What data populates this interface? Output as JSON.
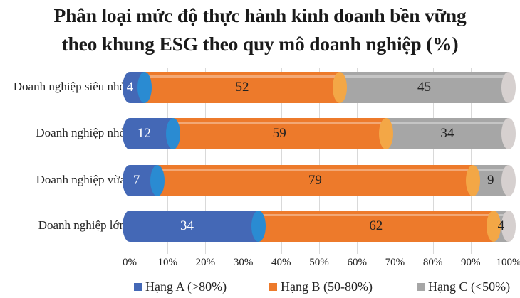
{
  "chart_data": {
    "type": "bar",
    "orientation": "horizontal",
    "stacked": "percent",
    "title": "Phân loại mức độ thực hành kinh doanh bền vững theo khung ESG theo quy mô doanh nghiệp (%)",
    "title_lines": [
      "Phân loại mức độ thực hành kinh doanh bền vững",
      "theo khung ESG theo quy mô doanh nghiệp (%)"
    ],
    "categories": [
      "Doanh nghiệp siêu nhỏ",
      "Doanh nghiệp nhỏ",
      "Doanh nghiệp vừa",
      "Doanh nghiệp lớn"
    ],
    "series": [
      {
        "name": "Hạng A (>80%)",
        "color": "#4468B6",
        "cap_color": "#2A8BD2",
        "values": [
          4,
          12,
          7,
          34
        ]
      },
      {
        "name": "Hạng B (50-80%)",
        "color": "#ED7A2B",
        "cap_color": "#F3A746",
        "values": [
          52,
          59,
          79,
          62
        ]
      },
      {
        "name": "Hạng C (<50%)",
        "color": "#A6A6A6",
        "cap_color": "#D6D0CF",
        "values": [
          45,
          34,
          9,
          4
        ]
      }
    ],
    "xlabel": "",
    "ylabel": "",
    "xlim": [
      0,
      100
    ],
    "x_ticks": [
      "0%",
      "10%",
      "20%",
      "30%",
      "40%",
      "50%",
      "60%",
      "70%",
      "80%",
      "90%",
      "100%"
    ],
    "grid": true,
    "legend_position": "bottom",
    "data_labels": true,
    "style": "3d-cylinder"
  }
}
